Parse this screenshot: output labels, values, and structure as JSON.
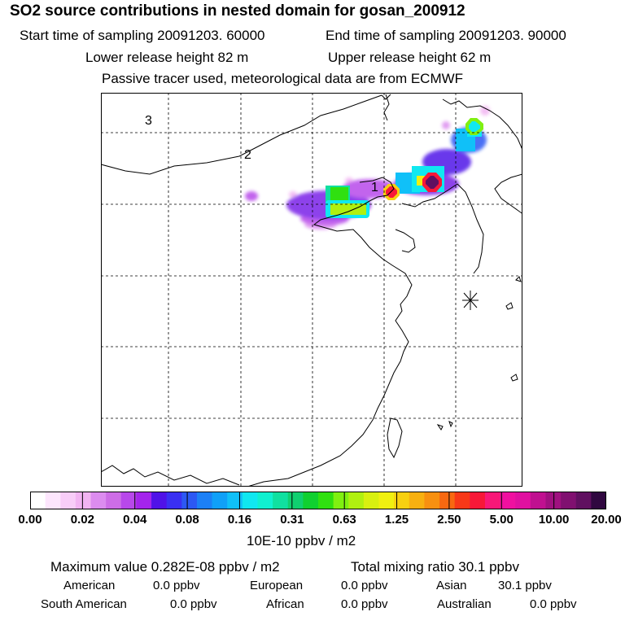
{
  "header": {
    "title": "SO2 source contributions in nested domain for gosan_200912",
    "start_time": "Start time of sampling 20091203. 60000",
    "end_time": "End time of sampling 20091203. 90000",
    "lower_height": "Lower release height   82 m",
    "upper_height": "Upper release height   62 m",
    "tracer_note": "Passive tracer used, meteorological data are from ECMWF"
  },
  "map": {
    "labels": [
      "3",
      "2",
      "1"
    ],
    "receptor_marker": "asterisk-icon"
  },
  "colorbar": {
    "colors": [
      "#ffffff",
      "#fde6fd",
      "#f8cdf8",
      "#f2b4f2",
      "#dc8cef",
      "#cd6de6",
      "#b848ea",
      "#a424ec",
      "#5012e8",
      "#3a30f2",
      "#2c58f4",
      "#1c80f6",
      "#10a0f8",
      "#10c0f8",
      "#10e8f0",
      "#10f0d0",
      "#10e0a0",
      "#10d070",
      "#10d030",
      "#30e010",
      "#80f010",
      "#b0f010",
      "#d8f010",
      "#f0f010",
      "#f8d010",
      "#f8b010",
      "#f89010",
      "#f86810",
      "#f83818",
      "#f81838",
      "#f81878",
      "#f010a0",
      "#e010a0",
      "#c01090",
      "#a01080",
      "#801070",
      "#601060",
      "#300840"
    ],
    "tick_labels": [
      "0.00",
      "0.02",
      "0.04",
      "0.08",
      "0.16",
      "0.31",
      "0.63",
      "1.25",
      "2.50",
      "5.00",
      "10.00",
      "20.00"
    ],
    "unit_label": "10E-10 ppbv / m2"
  },
  "footer": {
    "max_value": "Maximum value  0.282E-08 ppbv / m2",
    "total_mixing": "Total mixing ratio       30.1 ppbv",
    "regions": [
      {
        "name": "American",
        "value": "0.0 ppbv"
      },
      {
        "name": "European",
        "value": "0.0 ppbv"
      },
      {
        "name": "Asian",
        "value": "30.1 ppbv"
      },
      {
        "name": "South American",
        "value": "0.0 ppbv"
      },
      {
        "name": "African",
        "value": "0.0 ppbv"
      },
      {
        "name": "Australian",
        "value": "0.0 ppbv"
      }
    ]
  }
}
